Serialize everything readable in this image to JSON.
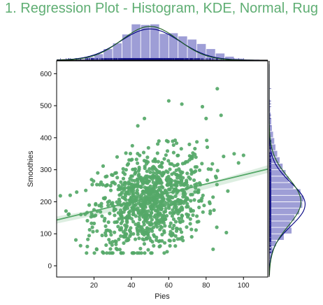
{
  "title": "1. Regression Plot - Histogram, KDE, Normal, Rug",
  "colors": {
    "title": "#5fae73",
    "scatter": "#55a868",
    "regression": "#55a868",
    "marginal_hist": "#7e7ec8",
    "marginal_kde": "#000080",
    "marginal_normal": "#1b5e20",
    "rug": "#1a1a8c",
    "axis": "#000000",
    "tick_text": "#1a1a1a"
  },
  "chart_data": {
    "type": "scatter",
    "title": "1. Regression Plot - Histogram, KDE, Normal, Rug",
    "xlabel": "Pies",
    "ylabel": "Smoothies",
    "xlim": [
      0,
      113
    ],
    "ylim": [
      -35,
      640
    ],
    "xticks": [
      20,
      40,
      60,
      80,
      100
    ],
    "yticks": [
      0,
      100,
      200,
      300,
      400,
      500,
      600
    ],
    "grid": false,
    "n_points": 1000,
    "x_distribution": {
      "mean": 50,
      "std": 15
    },
    "y_distribution": {
      "mean": 200,
      "std": 75
    },
    "regression_line": {
      "x": [
        0,
        113
      ],
      "y": [
        143,
        302
      ]
    },
    "regression_ci": {
      "x": [
        0,
        50,
        113
      ],
      "lower": [
        132,
        194,
        290
      ],
      "upper": [
        154,
        206,
        314
      ]
    },
    "selected_points": [
      {
        "x": 86,
        "y": 553
      },
      {
        "x": 60,
        "y": 515
      },
      {
        "x": 67,
        "y": 505
      },
      {
        "x": 78,
        "y": 497
      },
      {
        "x": 88,
        "y": 470
      },
      {
        "x": 47,
        "y": 460
      },
      {
        "x": 80,
        "y": 460
      },
      {
        "x": 95,
        "y": 350
      },
      {
        "x": 100,
        "y": 345
      },
      {
        "x": 22,
        "y": 290
      },
      {
        "x": 13,
        "y": 160
      },
      {
        "x": 20,
        "y": 175
      },
      {
        "x": 30,
        "y": 75
      },
      {
        "x": 49,
        "y": 50
      },
      {
        "x": 55,
        "y": 60
      }
    ],
    "marginal_x": {
      "type": "histogram",
      "bin_edges": [
        0,
        5,
        10,
        15,
        20,
        25,
        30,
        35,
        40,
        45,
        50,
        55,
        60,
        65,
        70,
        75,
        80,
        85,
        90,
        95,
        100,
        105,
        110
      ],
      "density": [
        0.0001,
        0.0003,
        0.001,
        0.0025,
        0.005,
        0.009,
        0.0135,
        0.0205,
        0.0285,
        0.028,
        0.0285,
        0.021,
        0.0215,
        0.019,
        0.0165,
        0.013,
        0.009,
        0.0055,
        0.003,
        0.0015,
        0.0006,
        0.0002
      ]
    },
    "marginal_y": {
      "type": "histogram",
      "bin_edges": [
        0,
        20,
        40,
        60,
        80,
        100,
        120,
        140,
        160,
        180,
        200,
        220,
        240,
        260,
        280,
        300,
        320,
        340,
        360,
        380,
        400,
        420,
        440,
        460,
        480,
        500,
        520,
        540,
        560
      ],
      "density": [
        0.0002,
        0.0003,
        0.0006,
        0.0012,
        0.0025,
        0.0038,
        0.0036,
        0.0043,
        0.0051,
        0.0056,
        0.0058,
        0.0053,
        0.0041,
        0.0033,
        0.0028,
        0.0023,
        0.0018,
        0.0014,
        0.0011,
        0.0009,
        0.0007,
        0.0005,
        0.0004,
        0.0003,
        0.0002,
        0.0002,
        0.0001,
        0.0001
      ]
    }
  }
}
